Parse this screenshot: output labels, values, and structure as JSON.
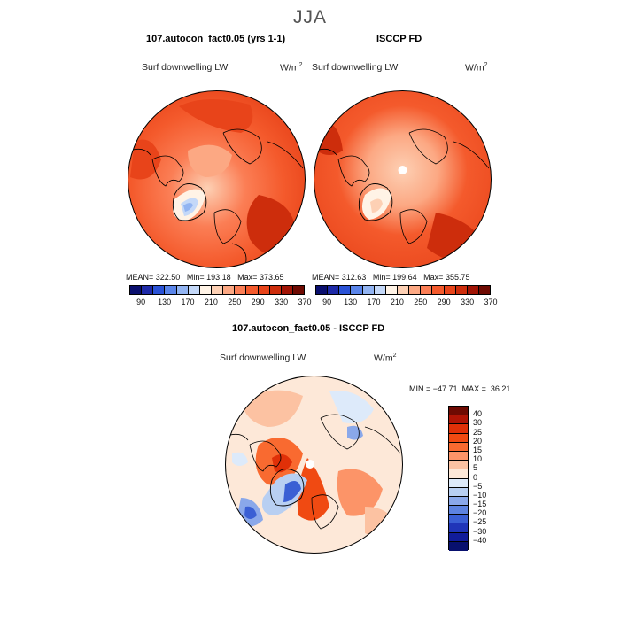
{
  "chart_data": [
    {
      "type": "heatmap",
      "projection": "north-polar-stereographic",
      "title": "107.autocon_fact0.05 (yrs 1-1)",
      "variable": "Surf downwelling LW",
      "units": "W/m",
      "units_exp": "2",
      "stats": {
        "mean_label": "MEAN=",
        "mean": "322.50",
        "min_label": "Min=",
        "min": "193.18",
        "max_label": "Max=",
        "max": "373.65"
      },
      "colorbar_ticks": [
        "90",
        "130",
        "170",
        "210",
        "250",
        "290",
        "330",
        "370"
      ]
    },
    {
      "type": "heatmap",
      "projection": "north-polar-stereographic",
      "title": "ISCCP FD",
      "variable": "Surf downwelling LW",
      "units": "W/m",
      "units_exp": "2",
      "stats": {
        "mean_label": "MEAN=",
        "mean": "312.63",
        "min_label": "Min=",
        "min": "199.64",
        "max_label": "Max=",
        "max": "355.75"
      },
      "colorbar_ticks": [
        "90",
        "130",
        "170",
        "210",
        "250",
        "290",
        "330",
        "370"
      ]
    },
    {
      "type": "heatmap",
      "projection": "north-polar-stereographic",
      "title": "107.autocon_fact0.05 - ISCCP FD",
      "variable": "Surf downwelling LW",
      "units": "W/m",
      "units_exp": "2",
      "stats": {
        "min_label": "MIN =",
        "min": "−47.71",
        "max_label": "MAX =",
        "max": "36.21"
      },
      "colorbar_ticks": [
        "40",
        "30",
        "25",
        "20",
        "15",
        "10",
        "5",
        "0",
        "−5",
        "−10",
        "−15",
        "−20",
        "−25",
        "−30",
        "−40"
      ]
    }
  ],
  "season": "JJA",
  "colors": {
    "abs_scale": [
      "#0a0f6e",
      "#1e2aa8",
      "#2a52d6",
      "#5a85ea",
      "#92b4f2",
      "#c4d8f8",
      "#fff3e6",
      "#fdd0b4",
      "#fca883",
      "#fb7e55",
      "#f45a2c",
      "#e8441a",
      "#cd2d0c",
      "#a11405",
      "#6e0a02"
    ],
    "diff_scale": [
      "#6e0a02",
      "#b01405",
      "#e03008",
      "#f04a12",
      "#f96a30",
      "#fc9468",
      "#fcc2a2",
      "#fde8d8",
      "#ddeafa",
      "#b8cff2",
      "#8aa8ea",
      "#5d83e0",
      "#3a5fd4",
      "#2035b8",
      "#111c9a",
      "#08106e"
    ]
  }
}
